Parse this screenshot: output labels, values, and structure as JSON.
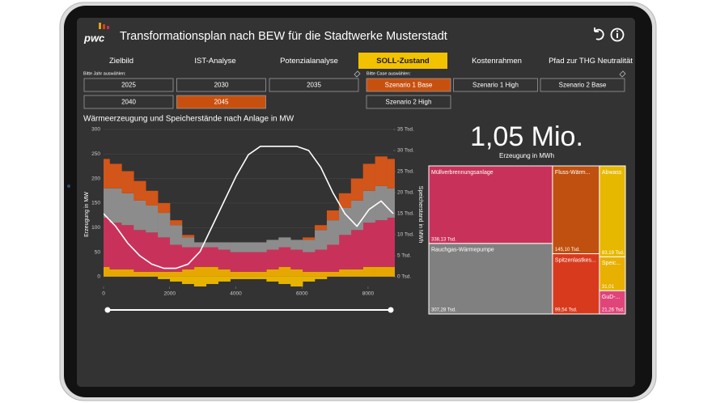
{
  "header": {
    "logo": "pwc",
    "title": "Transformationsplan nach BEW für die Stadtwerke Musterstadt"
  },
  "tabs": [
    "Zielbild",
    "IST-Analyse",
    "Potenzialanalyse",
    "SOLL-Zustand",
    "Kostenrahmen",
    "Pfad zur THG Neutralität"
  ],
  "active_tab": 3,
  "year_filter": {
    "label": "Bitte Jahr auswählen:",
    "options": [
      "2025",
      "2030",
      "2035",
      "2040",
      "2045"
    ],
    "selected": 4
  },
  "case_filter": {
    "label": "Bitte Case auswählen:",
    "options": [
      "Szenario 1 Base",
      "Szenario 1 High",
      "Szenario 2 Base",
      "Szenario 2 High"
    ],
    "selected": 0
  },
  "kpi": {
    "value": "1,05 Mio.",
    "label": "Erzeugung in MWh"
  },
  "chart_data": [
    {
      "type": "stacked_area",
      "title": "Wärmeerzeugung und Speicherstände nach Anlage in MW",
      "y_label": "Erzeugung in MW",
      "y2_label": "Speicherstand in MWh",
      "x": [
        0,
        365,
        730,
        1095,
        1460,
        1825,
        2190,
        2555,
        2920,
        3285,
        3650,
        4015,
        4380,
        4745,
        5110,
        5475,
        5840,
        6205,
        6570,
        6935,
        7300,
        7665,
        8030,
        8395,
        8760
      ],
      "xlim": [
        0,
        8760
      ],
      "xticks": [
        0,
        2000,
        4000,
        6000,
        8000
      ],
      "ylim": [
        -20,
        300
      ],
      "yticks": [
        0,
        50,
        100,
        150,
        200,
        250,
        300
      ],
      "y2lim": [
        0,
        35
      ],
      "y2ticks": [
        {
          "value": 0,
          "label": "0 Tsd."
        },
        {
          "value": 5,
          "label": "5 Tsd."
        },
        {
          "value": 10,
          "label": "10 Tsd."
        },
        {
          "value": 15,
          "label": "15 Tsd."
        },
        {
          "value": 20,
          "label": "20 Tsd."
        },
        {
          "value": 25,
          "label": "25 Tsd."
        },
        {
          "value": 30,
          "label": "30 Tsd."
        },
        {
          "value": 35,
          "label": "35 Tsd."
        }
      ],
      "series": [
        {
          "color": "#e6a800",
          "values": [
            20,
            15,
            15,
            10,
            10,
            10,
            10,
            15,
            20,
            20,
            15,
            10,
            10,
            10,
            15,
            20,
            15,
            10,
            10,
            10,
            15,
            15,
            20,
            20,
            20
          ]
        },
        {
          "color": "#c8325a",
          "values": [
            100,
            95,
            90,
            85,
            80,
            70,
            55,
            45,
            40,
            40,
            40,
            40,
            40,
            40,
            40,
            40,
            40,
            40,
            45,
            55,
            70,
            80,
            90,
            95,
            100
          ]
        },
        {
          "color": "#8c8c8c",
          "values": [
            60,
            70,
            65,
            60,
            55,
            50,
            40,
            20,
            10,
            10,
            15,
            20,
            20,
            20,
            20,
            20,
            20,
            25,
            40,
            50,
            55,
            60,
            65,
            70,
            60
          ]
        },
        {
          "color": "#d2551a",
          "values": [
            60,
            50,
            45,
            40,
            30,
            20,
            10,
            5,
            0,
            0,
            0,
            0,
            0,
            0,
            0,
            0,
            0,
            5,
            10,
            20,
            30,
            45,
            55,
            60,
            60
          ]
        },
        {
          "color": "#e6b400",
          "values": [
            0,
            0,
            0,
            0,
            0,
            -5,
            -10,
            -15,
            -20,
            -15,
            -10,
            -5,
            -5,
            -5,
            -10,
            -15,
            -20,
            -10,
            -5,
            0,
            0,
            0,
            0,
            0,
            0
          ]
        },
        {
          "color": "#ffffff",
          "axis": "y2",
          "line": true,
          "values": [
            15,
            12,
            8,
            5,
            3,
            2,
            2,
            3,
            6,
            12,
            18,
            24,
            29,
            31,
            31,
            31,
            31,
            30,
            26,
            20,
            15,
            12,
            16,
            18,
            15
          ]
        }
      ]
    },
    {
      "type": "treemap",
      "categories": [
        "Müllverbrennungsanlage",
        "Fluss-Wärm...",
        "Abwass",
        "Rauchgas-Wärmepumpe",
        "Spitzenlastkes...",
        "Speic...",
        "GuD-..."
      ],
      "values": [
        338.13,
        145.1,
        83.19,
        307.28,
        99.54,
        31.01,
        21.26
      ],
      "value_labels": [
        "338,13 Tsd.",
        "145,10 Tsd.",
        "83,19 Tsd.",
        "307,28 Tsd.",
        "99,54 Tsd.",
        "31,01",
        "21,26 Tsd."
      ],
      "colors": [
        "#c8325a",
        "#c0500f",
        "#e6b800",
        "#808080",
        "#d83a1e",
        "#e8b000",
        "#e0457a"
      ]
    }
  ]
}
